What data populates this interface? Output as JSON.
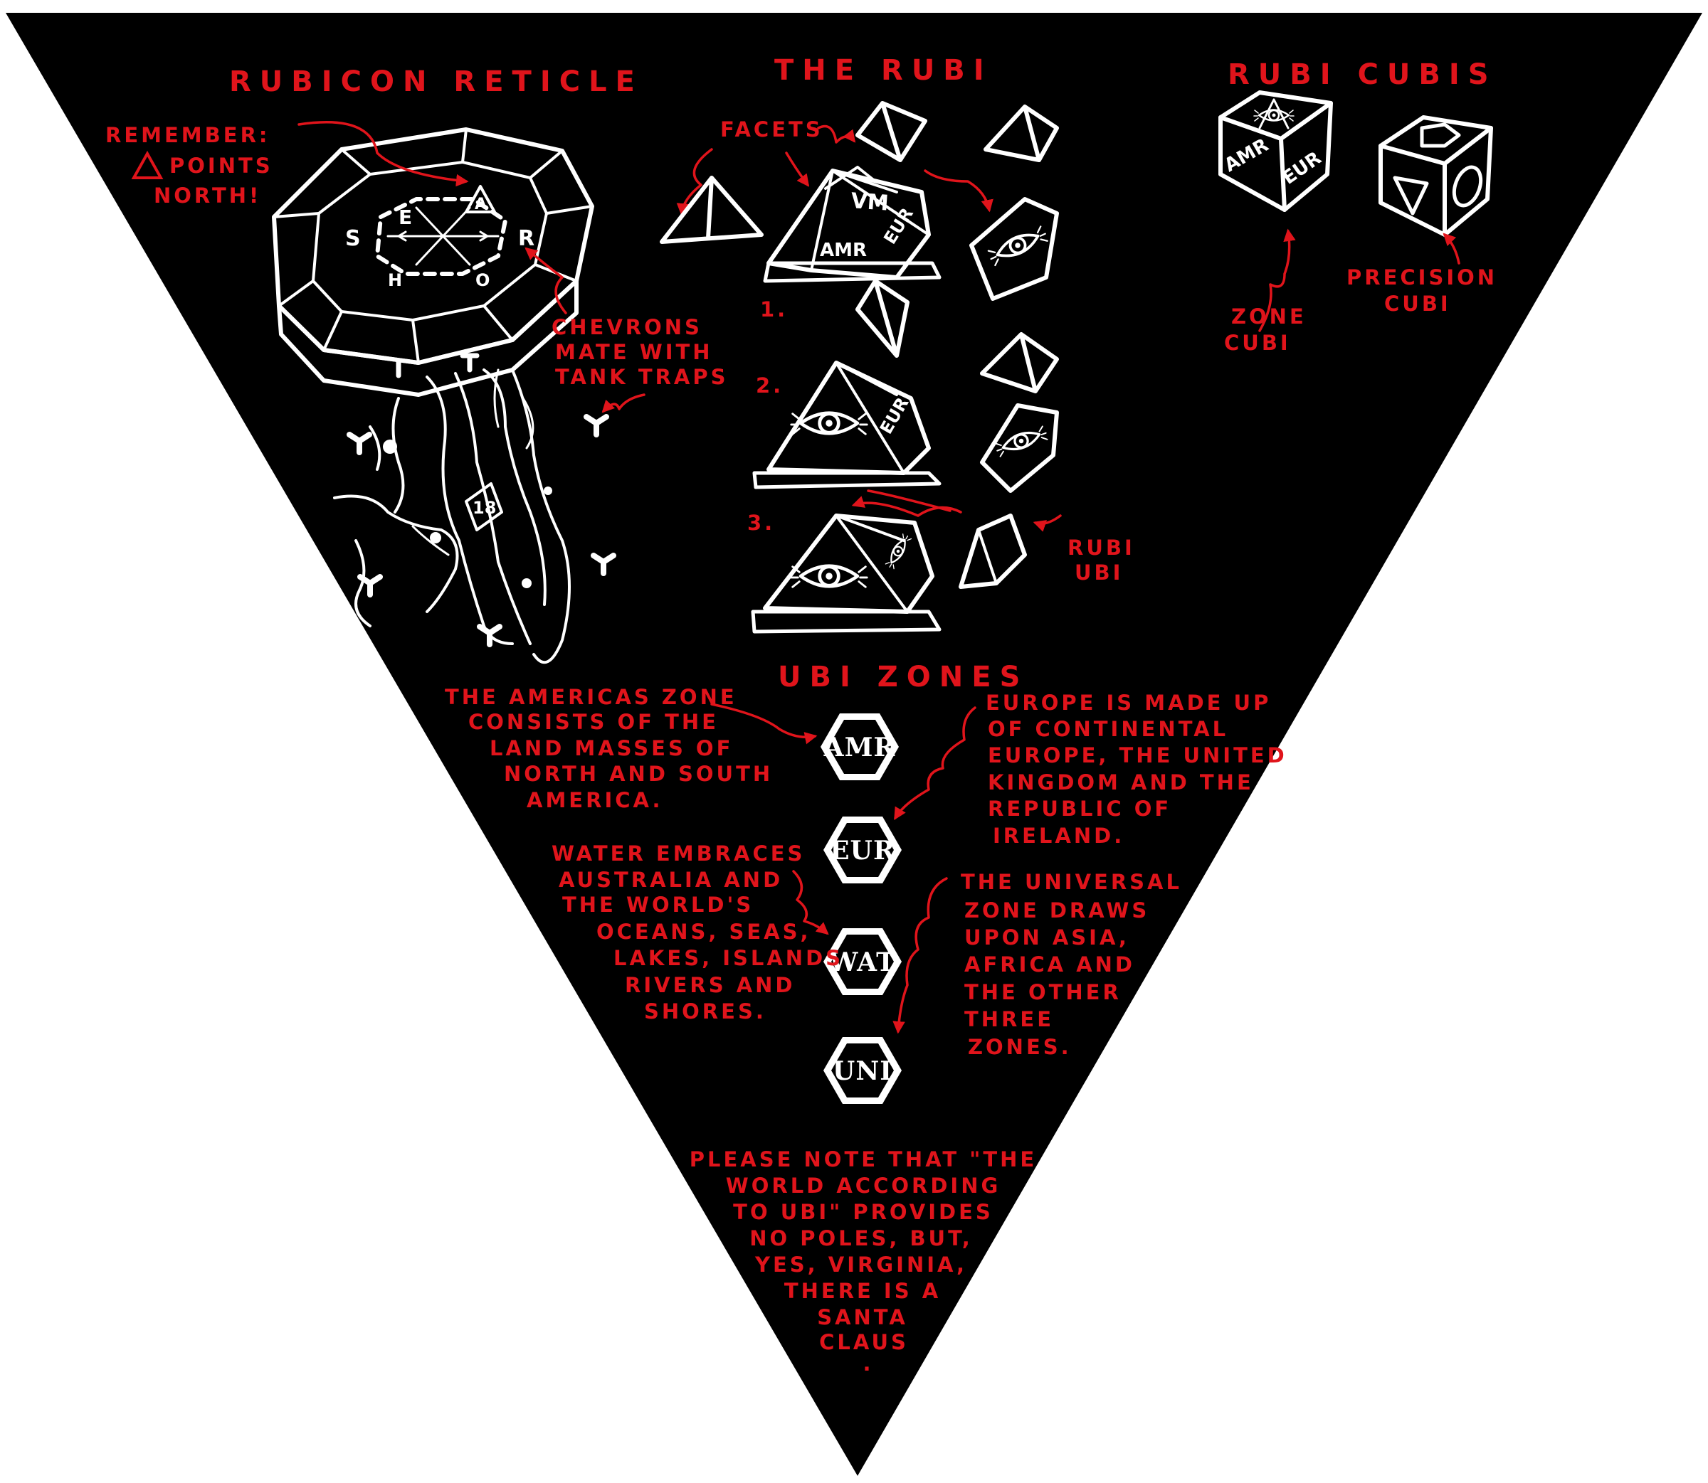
{
  "colors": {
    "background": "#000000",
    "annotation": "#e0141b",
    "drawing": "#ffffff",
    "page": "#ffffff"
  },
  "sections": {
    "reticle_title": "RUBICON RETICLE",
    "rubi_title": "THE RUBI",
    "cubis_title": "RUBI CUBIS",
    "zones_title": "UBI ZONES"
  },
  "reticle": {
    "remember_lines": [
      "REMEMBER:",
      "POINTS",
      "NORTH!"
    ],
    "chevrons_lines": [
      "CHEVRONS",
      "MATE WITH",
      "TANK TRAPS"
    ],
    "compass_letters": {
      "e": "E",
      "a": "A",
      "s": "S",
      "r": "R",
      "h": "H",
      "o": "O"
    },
    "map_number": "18"
  },
  "rubi": {
    "facets_label": "FACETS",
    "steps": [
      "1.",
      "2.",
      "3."
    ],
    "base_labels": {
      "top": "VM",
      "side": "EUR",
      "bottom": "AMR"
    },
    "rubi_ubi_lines": [
      "RUBI",
      "UBI"
    ]
  },
  "cubis": {
    "zone_cubi_lines": [
      "ZONE",
      "CUBI"
    ],
    "precision_cubi_lines": [
      "PRECISION",
      "CUBI"
    ],
    "cube_faces": {
      "left": "AMR",
      "right": "EUR"
    }
  },
  "zones": {
    "hexes": [
      "AMR",
      "EUR",
      "WAT",
      "UNI"
    ],
    "americas_lines": [
      "THE AMERICAS ZONE",
      "CONSISTS OF THE",
      "LAND MASSES OF",
      "NORTH AND SOUTH",
      "AMERICA."
    ],
    "europe_lines": [
      "EUROPE IS MADE UP",
      "OF CONTINENTAL",
      "EUROPE, THE UNITED",
      "KINGDOM AND THE",
      "REPUBLIC OF",
      "IRELAND."
    ],
    "water_lines": [
      "WATER EMBRACES",
      "AUSTRALIA AND",
      "THE WORLD'S",
      "OCEANS, SEAS,",
      "LAKES, ISLANDS",
      "RIVERS AND",
      "SHORES."
    ],
    "universal_lines": [
      "THE UNIVERSAL",
      "ZONE DRAWS",
      "UPON ASIA,",
      "AFRICA AND",
      "THE OTHER",
      "THREE",
      "ZONES."
    ]
  },
  "footnote_lines": [
    "PLEASE NOTE THAT \"THE",
    "WORLD ACCORDING",
    "TO UBI\" PROVIDES",
    "NO POLES, BUT,",
    "YES, VIRGINIA,",
    "THERE IS A",
    "SANTA",
    "CLAUS",
    "."
  ]
}
